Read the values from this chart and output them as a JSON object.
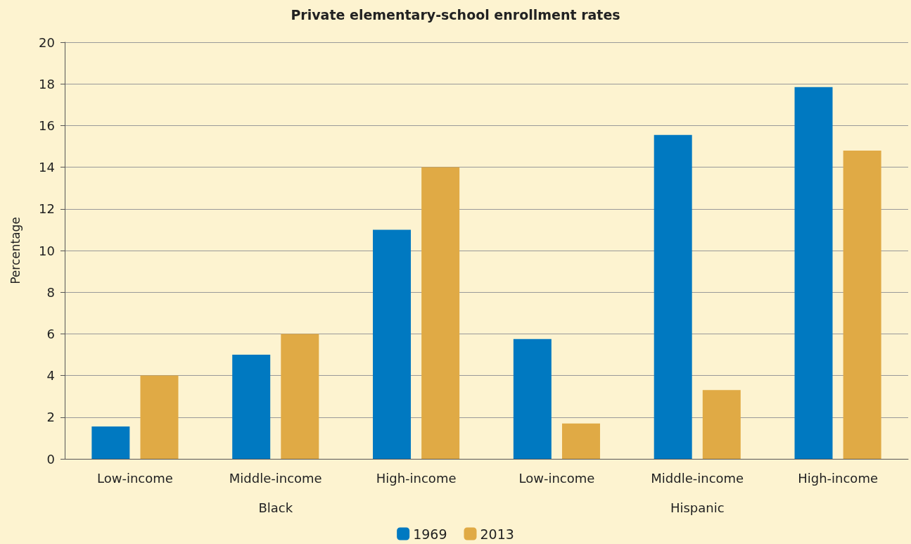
{
  "chart_data": {
    "type": "bar",
    "title": "Private elementary-school enrollment rates",
    "ylabel": "Percentage",
    "categories": [
      "Low-income",
      "Middle-income",
      "High-income",
      "Low-income",
      "Middle-income",
      "High-income"
    ],
    "annotations": [
      "Black",
      "Hispanic"
    ],
    "series": [
      {
        "name": "1969",
        "color": "#0079c1",
        "values": [
          1.55,
          5.0,
          11.0,
          5.75,
          15.55,
          17.85
        ]
      },
      {
        "name": "2013",
        "color": "#e0aa45",
        "values": [
          4.0,
          6.0,
          14.0,
          1.7,
          3.3,
          14.8
        ]
      }
    ],
    "ylim": [
      0,
      20
    ],
    "yticks": [
      0,
      2,
      4,
      6,
      8,
      10,
      12,
      14,
      16,
      18,
      20
    ],
    "grid": "y",
    "legend": "bottom"
  }
}
